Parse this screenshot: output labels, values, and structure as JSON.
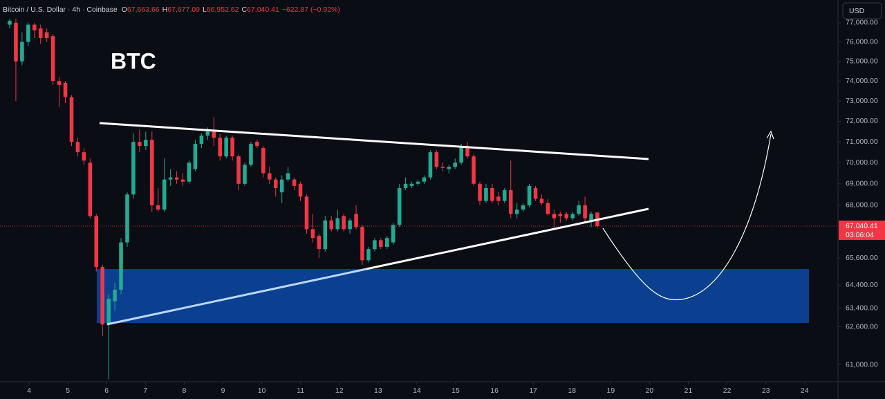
{
  "header": {
    "symbol": "Bitcoin / U.S. Dollar · 4h · Coinbase",
    "quote": [
      {
        "key": "O",
        "value": "67,663.66"
      },
      {
        "key": "H",
        "value": "67,677.09"
      },
      {
        "key": "L",
        "value": "66,952.62"
      },
      {
        "key": "C",
        "value": "67,040.41"
      }
    ],
    "change": "−622.87 (−0.92%)"
  },
  "chart_data": {
    "type": "candlestick",
    "title": "BTC",
    "currency": "USD",
    "up_color": "#22ab94",
    "down_color": "#f23645",
    "log_y": true,
    "ylim": [
      60300,
      78200
    ],
    "yticks": [
      {
        "value": 77000,
        "label": "77,000.00"
      },
      {
        "value": 76000,
        "label": "76,000.00"
      },
      {
        "value": 75000,
        "label": "75,000.00"
      },
      {
        "value": 74000,
        "label": "74,000.00"
      },
      {
        "value": 73000,
        "label": "73,000.00"
      },
      {
        "value": 72000,
        "label": "72,000.00"
      },
      {
        "value": 71000,
        "label": "71,000.00"
      },
      {
        "value": 70000,
        "label": "70,000.00"
      },
      {
        "value": 69000,
        "label": "69,000.00"
      },
      {
        "value": 68000,
        "label": "68,000.00"
      },
      {
        "value": 65600,
        "label": "65,600.00"
      },
      {
        "value": 64400,
        "label": "64,400.00"
      },
      {
        "value": 63400,
        "label": "63,400.00"
      },
      {
        "value": 62600,
        "label": "62,600.00"
      },
      {
        "value": 61000,
        "label": "61,000.00"
      }
    ],
    "xlim": [
      3.25,
      24.86
    ],
    "xticks": [
      4,
      5,
      6,
      7,
      8,
      9,
      10,
      11,
      12,
      13,
      14,
      15,
      16,
      17,
      18,
      19,
      20,
      21,
      22,
      23,
      24
    ],
    "last_price": {
      "value": 67040.41,
      "label": "67,040.41"
    },
    "countdown": "03:06:04",
    "ohlc": [
      [
        76900,
        77200,
        76700,
        77100
      ],
      [
        77000,
        77200,
        73000,
        75000
      ],
      [
        75000,
        76500,
        74800,
        76000
      ],
      [
        76000,
        77000,
        75800,
        76900
      ],
      [
        76900,
        77000,
        76200,
        76600
      ],
      [
        76700,
        76900,
        75900,
        76200
      ],
      [
        76500,
        76700,
        76000,
        76200
      ],
      [
        76300,
        76400,
        73800,
        74000
      ],
      [
        74000,
        74200,
        72700,
        73800
      ],
      [
        73900,
        74000,
        72900,
        73200
      ],
      [
        73200,
        73300,
        70800,
        71000
      ],
      [
        71000,
        71200,
        70300,
        70500
      ],
      [
        70500,
        70700,
        69900,
        70100
      ],
      [
        70000,
        70200,
        67400,
        67500
      ],
      [
        67500,
        67600,
        65000,
        65200
      ],
      [
        65200,
        65300,
        62200,
        62700
      ],
      [
        62700,
        64000,
        60400,
        63800
      ],
      [
        63700,
        64500,
        63300,
        64200
      ],
      [
        64200,
        66500,
        64000,
        66300
      ],
      [
        66300,
        68600,
        66100,
        68500
      ],
      [
        68500,
        71400,
        68300,
        71000
      ],
      [
        71000,
        71600,
        70500,
        70800
      ],
      [
        70800,
        71500,
        70600,
        71100
      ],
      [
        71100,
        71500,
        67700,
        68000
      ],
      [
        68000,
        68800,
        67700,
        67800
      ],
      [
        67800,
        70200,
        67700,
        69200
      ],
      [
        69200,
        69700,
        68900,
        69300
      ],
      [
        69300,
        69600,
        69000,
        69200
      ],
      [
        69200,
        69500,
        68900,
        69100
      ],
      [
        69100,
        70100,
        69000,
        70000
      ],
      [
        69700,
        71100,
        69600,
        70900
      ],
      [
        70900,
        71400,
        70700,
        71300
      ],
      [
        71300,
        71700,
        71100,
        71500
      ],
      [
        71500,
        72200,
        70800,
        71200
      ],
      [
        71200,
        71400,
        70100,
        70300
      ],
      [
        70300,
        71300,
        70200,
        71200
      ],
      [
        71200,
        71300,
        70100,
        70300
      ],
      [
        70300,
        70400,
        68700,
        69000
      ],
      [
        69000,
        70000,
        68900,
        69900
      ],
      [
        69900,
        71000,
        69800,
        70900
      ],
      [
        71000,
        71100,
        70700,
        70800
      ],
      [
        70700,
        70800,
        69300,
        69500
      ],
      [
        69500,
        69800,
        69000,
        69200
      ],
      [
        69200,
        69300,
        68400,
        68800
      ],
      [
        68600,
        69400,
        68100,
        69200
      ],
      [
        69200,
        69800,
        69100,
        69500
      ],
      [
        69200,
        69300,
        68700,
        68900
      ],
      [
        69000,
        69100,
        68200,
        68400
      ],
      [
        68400,
        68500,
        66700,
        66900
      ],
      [
        66900,
        67600,
        66300,
        66500
      ],
      [
        66600,
        66700,
        65600,
        66000
      ],
      [
        66000,
        67500,
        65900,
        67300
      ],
      [
        67300,
        67500,
        66800,
        66900
      ],
      [
        66900,
        67800,
        66800,
        67400
      ],
      [
        67500,
        67600,
        66800,
        66900
      ],
      [
        66900,
        67400,
        66700,
        67300
      ],
      [
        67600,
        68000,
        66900,
        67000
      ],
      [
        67000,
        67100,
        65300,
        65500
      ],
      [
        65500,
        66100,
        65400,
        66000
      ],
      [
        66000,
        66500,
        65900,
        66400
      ],
      [
        66400,
        66500,
        66000,
        66100
      ],
      [
        66100,
        66600,
        66000,
        66500
      ],
      [
        66300,
        67200,
        66200,
        67100
      ],
      [
        67100,
        69000,
        67000,
        68800
      ],
      [
        68800,
        69300,
        68700,
        69000
      ],
      [
        68900,
        69100,
        68800,
        69000
      ],
      [
        69000,
        69200,
        68900,
        69100
      ],
      [
        69100,
        69400,
        69000,
        69300
      ],
      [
        69300,
        70600,
        69200,
        70500
      ],
      [
        70500,
        70600,
        69700,
        69800
      ],
      [
        69800,
        70000,
        69600,
        69750
      ],
      [
        69700,
        69900,
        69500,
        69800
      ],
      [
        69800,
        70200,
        69700,
        70000
      ],
      [
        70000,
        70900,
        69900,
        70800
      ],
      [
        70800,
        71000,
        70200,
        70300
      ],
      [
        70300,
        70400,
        68900,
        69000
      ],
      [
        69000,
        69100,
        68000,
        68200
      ],
      [
        68200,
        69000,
        68100,
        68800
      ],
      [
        68800,
        69000,
        68100,
        68200
      ],
      [
        68400,
        68600,
        68000,
        68200
      ],
      [
        68200,
        68800,
        68100,
        68700
      ],
      [
        68700,
        70100,
        67400,
        67600
      ],
      [
        67600,
        68100,
        67400,
        67800
      ],
      [
        67800,
        68100,
        67700,
        68000
      ],
      [
        68000,
        69000,
        67900,
        68900
      ],
      [
        68800,
        68900,
        68200,
        68300
      ],
      [
        68300,
        68500,
        68000,
        68100
      ],
      [
        68100,
        68300,
        67500,
        67600
      ],
      [
        67600,
        67800,
        67000,
        67400
      ],
      [
        67600,
        67700,
        67200,
        67500
      ],
      [
        67600,
        67700,
        67300,
        67400
      ],
      [
        67400,
        67700,
        67300,
        67600
      ],
      [
        67600,
        68200,
        67500,
        68000
      ],
      [
        68000,
        68400,
        67200,
        67400
      ],
      [
        67300,
        67700,
        67000,
        67600
      ],
      [
        67663.66,
        67677.09,
        66952.62,
        67040.41
      ]
    ]
  }
}
